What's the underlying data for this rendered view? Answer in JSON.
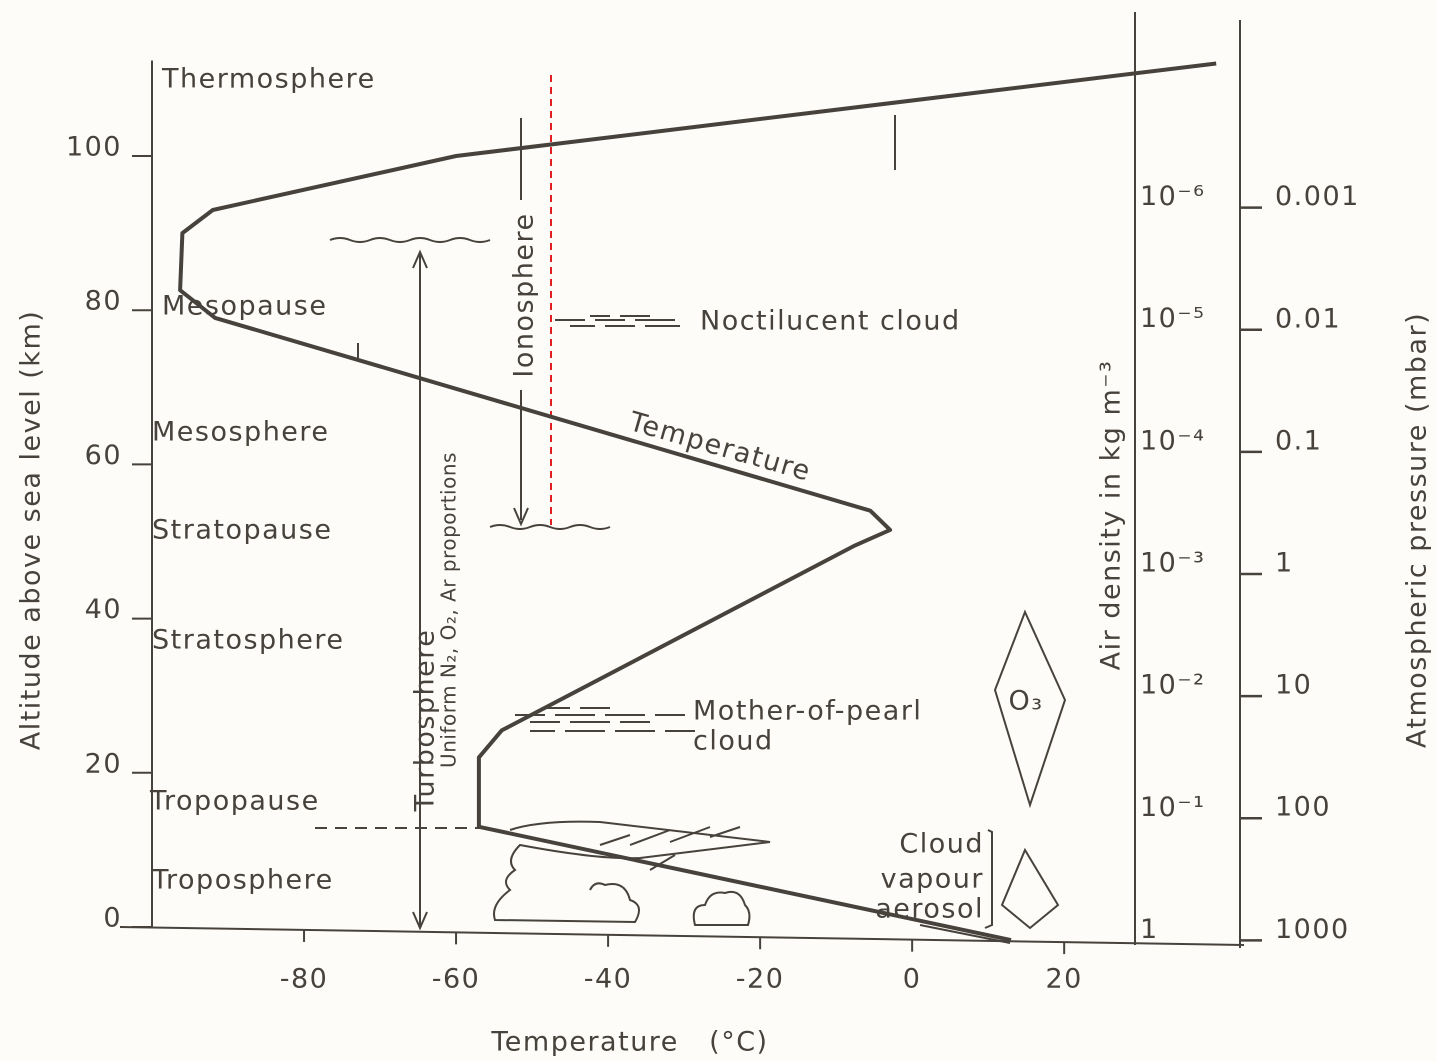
{
  "chart_data": {
    "type": "line",
    "x_label": "Temperature   (°C)",
    "y_label": "Altitude above sea level (km)",
    "xlim": [
      -100,
      43
    ],
    "ylim": [
      -2,
      112
    ],
    "xticks": [
      -80,
      -60,
      -40,
      -20,
      0,
      20
    ],
    "yticks": [
      0,
      20,
      40,
      60,
      80,
      100
    ],
    "series": [
      {
        "name": "Temperature",
        "color": "#47423c",
        "x": [
          13,
          -57,
          -57,
          -54,
          -7.5,
          -2.9,
          -5.5,
          -91.7,
          -96.3,
          -96,
          -92,
          -60,
          40
        ],
        "values": [
          -1.7,
          13,
          22,
          25.5,
          49.5,
          51.5,
          54,
          79,
          82.6,
          90,
          93,
          100,
          112
        ]
      }
    ],
    "density_axis": {
      "label": "Air density in kg m⁻³",
      "log": true,
      "lim": [
        1.25,
        8e-08
      ],
      "ticks": [
        {
          "value": 1e-06,
          "label": "10⁻⁶"
        },
        {
          "value": 1e-05,
          "label": "10⁻⁵"
        },
        {
          "value": 0.0001,
          "label": "10⁻⁴"
        },
        {
          "value": 0.001,
          "label": "10⁻³"
        },
        {
          "value": 0.01,
          "label": "10⁻²"
        },
        {
          "value": 0.1,
          "label": "10⁻¹"
        },
        1
      ]
    },
    "pressure_axis": {
      "label": "Atmospheric pressure (mbar)",
      "log": true,
      "lim": [
        1040,
        6.6e-05
      ],
      "ticks": [
        0.001,
        0.01,
        0.1,
        1,
        10,
        100,
        1000
      ]
    },
    "layers": [
      "Thermosphere",
      "Mesopause",
      "Mesosphere",
      "Stratopause",
      "Stratosphere",
      "Tropopause",
      "Troposphere"
    ],
    "annotations": {
      "ionosphere": "Ionosphere",
      "turbosphere": "Turbosphere",
      "uniform": "Uniform N₂, O₂, Ar proportions",
      "noctilucent": "Noctilucent cloud",
      "mother_of_pearl": [
        "Mother-of-pearl",
        "cloud"
      ],
      "ozone": "O₃",
      "cloud_vapour_aerosol": [
        "Cloud",
        "vapour",
        "aerosol"
      ]
    }
  }
}
